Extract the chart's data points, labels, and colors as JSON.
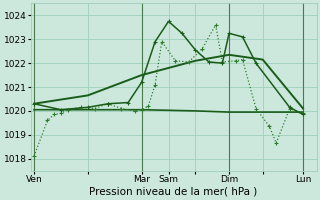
{
  "background_color": "#cce8dc",
  "grid_color": "#9ecfba",
  "line_color_dark": "#1a5c1a",
  "line_color_light": "#2e7d2e",
  "xlabel": "Pression niveau de la mer( hPa )",
  "xlabel_fontsize": 7.5,
  "ylim": [
    1017.5,
    1024.5
  ],
  "yticks": [
    1018,
    1019,
    1020,
    1021,
    1022,
    1023,
    1024
  ],
  "xtick_labels": [
    "Ven",
    "",
    "Mar",
    "Sam",
    "",
    "Dim",
    "",
    "Lun"
  ],
  "xtick_positions": [
    0,
    16,
    32,
    40,
    48,
    58,
    68,
    80
  ],
  "xlim": [
    -1,
    84
  ],
  "series_dotted": {
    "x": [
      0,
      4,
      6,
      8,
      10,
      14,
      18,
      22,
      26,
      30,
      32,
      34,
      36,
      38,
      42,
      46,
      50,
      54,
      56,
      60,
      62,
      66,
      70,
      72,
      76,
      80
    ],
    "y": [
      1018.1,
      1019.6,
      1019.85,
      1019.9,
      1020.05,
      1020.15,
      1020.1,
      1020.3,
      1020.1,
      1020.0,
      1020.05,
      1020.2,
      1021.1,
      1022.9,
      1022.1,
      1022.05,
      1022.6,
      1023.6,
      1022.05,
      1022.1,
      1022.15,
      1020.1,
      1019.35,
      1018.65,
      1020.1,
      1019.9
    ],
    "linewidth": 0.9,
    "markersize": 2.2
  },
  "series_jagged": {
    "x": [
      0,
      8,
      16,
      22,
      28,
      32,
      36,
      40,
      44,
      48,
      52,
      56,
      58,
      62,
      66,
      76,
      80
    ],
    "y": [
      1020.3,
      1020.05,
      1020.15,
      1020.3,
      1020.35,
      1021.2,
      1022.9,
      1023.75,
      1023.25,
      1022.55,
      1022.05,
      1022.0,
      1023.25,
      1023.1,
      1022.0,
      1020.15,
      1019.85
    ],
    "linewidth": 1.1,
    "markersize": 2.2
  },
  "series_smooth_upper": {
    "x": [
      0,
      16,
      32,
      48,
      58,
      68,
      80
    ],
    "y": [
      1020.3,
      1020.65,
      1021.5,
      1022.1,
      1022.35,
      1022.15,
      1020.1
    ],
    "linewidth": 1.4
  },
  "series_flat": {
    "x": [
      0,
      16,
      32,
      48,
      58,
      68,
      80
    ],
    "y": [
      1020.05,
      1020.05,
      1020.05,
      1020.0,
      1019.95,
      1019.95,
      1019.95
    ],
    "linewidth": 1.2
  },
  "vlines_x": [
    0,
    32,
    58,
    80
  ],
  "vline_color": "#4a7a4a",
  "tick_fontsize": 6.5
}
